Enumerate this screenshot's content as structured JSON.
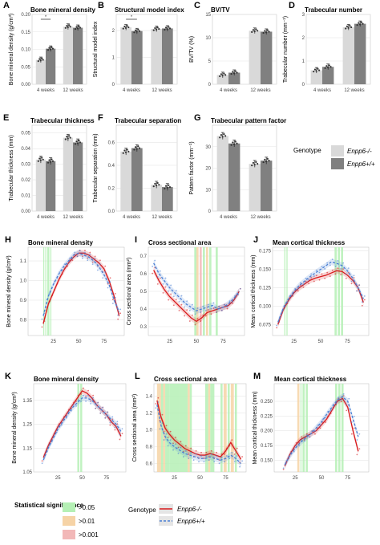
{
  "figure": {
    "genotype_title": "Genotype",
    "genotypes": [
      "Enpp6-/-",
      "Enpp6+/+"
    ],
    "genotype_colors": {
      "Enpp6-/-": "#d9d9d9",
      "Enpp6+/+": "#808080"
    },
    "line_colors": {
      "Enpp6-/-": "#d7191c",
      "Enpp6+/+": "#4a7fd4"
    },
    "stat_title": "Statistical significance",
    "stat_levels": [
      {
        "label": ">0.05",
        "color": "#b5f0b5"
      },
      {
        "label": ">0.01",
        "color": "#f6d3a6"
      },
      {
        "label": ">0.001",
        "color": "#f2b8b8"
      }
    ],
    "bottom_genotype_title": "Genotype"
  },
  "chart_data": [
    {
      "panel": "A",
      "type": "bar",
      "title": "Bone mineral density",
      "ylabel": "Bone mineral density (g/cm³)",
      "categories": [
        "4 weeks",
        "12 weeks"
      ],
      "ylim": [
        0,
        0.2
      ],
      "yticks": [
        0,
        0.05,
        0.1,
        0.15,
        0.2
      ],
      "ytick_labels": [
        "0.00",
        "0.05",
        "0.10",
        "0.15",
        "0.20"
      ],
      "series": [
        {
          "name": "Enpp6-/-",
          "values": [
            0.07,
            0.165
          ]
        },
        {
          "name": "Enpp6+/+",
          "values": [
            0.102,
            0.162
          ]
        }
      ],
      "significance": "*"
    },
    {
      "panel": "B",
      "type": "bar",
      "title": "Structural model index",
      "ylabel": "Structural model index",
      "categories": [
        "4 weeks",
        "12 weeks"
      ],
      "ylim": [
        0,
        2.6
      ],
      "yticks": [
        0,
        1,
        2
      ],
      "ytick_labels": [
        "0",
        "1",
        "2"
      ],
      "series": [
        {
          "name": "Enpp6-/-",
          "values": [
            2.12,
            2.06
          ]
        },
        {
          "name": "Enpp6+/+",
          "values": [
            1.98,
            2.08
          ]
        }
      ],
      "significance": "*"
    },
    {
      "panel": "C",
      "type": "bar",
      "title": "BV/TV",
      "ylabel": "BV/TV (%)",
      "categories": [
        "4 weeks",
        "12 weeks"
      ],
      "ylim": [
        0,
        15
      ],
      "yticks": [
        0,
        5,
        10,
        15
      ],
      "ytick_labels": [
        "0",
        "5",
        "10",
        "15"
      ],
      "series": [
        {
          "name": "Enpp6-/-",
          "values": [
            2.0,
            11.5
          ]
        },
        {
          "name": "Enpp6+/+",
          "values": [
            2.5,
            11.3
          ]
        }
      ]
    },
    {
      "panel": "D",
      "type": "bar",
      "title": "Trabecular number",
      "ylabel": "Trabecular number (mm⁻¹)",
      "categories": [
        "4 weeks",
        "12 weeks"
      ],
      "ylim": [
        0,
        3
      ],
      "yticks": [
        0,
        1,
        2,
        3
      ],
      "ytick_labels": [
        "0",
        "1",
        "2",
        "3"
      ],
      "series": [
        {
          "name": "Enpp6-/-",
          "values": [
            0.6,
            2.45
          ]
        },
        {
          "name": "Enpp6+/+",
          "values": [
            0.75,
            2.6
          ]
        }
      ]
    },
    {
      "panel": "E",
      "type": "bar",
      "title": "Trabecular thickness",
      "ylabel": "Trabecular thickness (mm)",
      "categories": [
        "4 weeks",
        "12 weeks"
      ],
      "ylim": [
        0,
        0.055
      ],
      "yticks": [
        0,
        0.01,
        0.02,
        0.03,
        0.04,
        0.05
      ],
      "ytick_labels": [
        "0.00",
        "0.01",
        "0.02",
        "0.03",
        "0.04",
        "0.05"
      ],
      "series": [
        {
          "name": "Enpp6-/-",
          "values": [
            0.033,
            0.047
          ]
        },
        {
          "name": "Enpp6+/+",
          "values": [
            0.032,
            0.044
          ]
        }
      ]
    },
    {
      "panel": "F",
      "type": "bar",
      "title": "Trabecular separation",
      "ylabel": "Trabecular separation (mm)",
      "categories": [
        "4 weeks",
        "12 weeks"
      ],
      "ylim": [
        0,
        0.75
      ],
      "yticks": [
        0,
        0.2,
        0.4,
        0.6
      ],
      "ytick_labels": [
        "0.0",
        "0.2",
        "0.4",
        "0.6"
      ],
      "series": [
        {
          "name": "Enpp6-/-",
          "values": [
            0.52,
            0.23
          ]
        },
        {
          "name": "Enpp6+/+",
          "values": [
            0.55,
            0.21
          ]
        }
      ]
    },
    {
      "panel": "G",
      "type": "bar",
      "title": "Trabecular pattern factor",
      "ylabel": "Pattern factor (mm⁻¹)",
      "categories": [
        "4 weeks",
        "12 weeks"
      ],
      "ylim": [
        0,
        40
      ],
      "yticks": [
        0,
        10,
        20,
        30
      ],
      "ytick_labels": [
        "0",
        "10",
        "20",
        "30"
      ],
      "series": [
        {
          "name": "Enpp6-/-",
          "values": [
            35,
            22
          ]
        },
        {
          "name": "Enpp6+/+",
          "values": [
            31.5,
            23.5
          ]
        }
      ]
    },
    {
      "panel": "H",
      "type": "line",
      "title": "Bone mineral density",
      "ylabel": "Bone mineral density (g/cm³)",
      "xlim": [
        0,
        95
      ],
      "xticks": [
        25,
        50,
        75
      ],
      "ylim": [
        0.72,
        1.17
      ],
      "yticks": [
        0.8,
        0.9,
        1.0,
        1.1
      ],
      "ytick_labels": [
        "0.8",
        "0.9",
        "1.0",
        "1.1"
      ],
      "x": [
        15,
        20,
        25,
        30,
        35,
        40,
        45,
        50,
        55,
        60,
        65,
        70,
        75,
        80,
        85,
        90
      ],
      "series": [
        {
          "name": "Enpp6-/-",
          "values": [
            0.78,
            0.88,
            0.94,
            1.0,
            1.05,
            1.09,
            1.12,
            1.14,
            1.14,
            1.13,
            1.11,
            1.09,
            1.06,
            1.0,
            0.92,
            0.82
          ]
        },
        {
          "name": "Enpp6+/+",
          "values": [
            0.82,
            0.92,
            0.98,
            1.03,
            1.07,
            1.1,
            1.13,
            1.14,
            1.13,
            1.12,
            1.1,
            1.07,
            1.03,
            0.98,
            0.9,
            0.84
          ]
        }
      ],
      "sig_bands": [
        [
          15,
          16,
          "g"
        ],
        [
          17,
          18,
          "g"
        ],
        [
          19,
          21,
          "g"
        ],
        [
          22,
          23,
          "g"
        ]
      ]
    },
    {
      "panel": "I",
      "type": "line",
      "title": "Cross sectional area",
      "ylabel": "Cross sectional area (mm²)",
      "xlim": [
        5,
        95
      ],
      "xticks": [
        25,
        50,
        75
      ],
      "ylim": [
        0.25,
        0.75
      ],
      "yticks": [
        0.3,
        0.4,
        0.5,
        0.6,
        0.7
      ],
      "ytick_labels": [
        "0.3",
        "0.4",
        "0.5",
        "0.6",
        "0.7"
      ],
      "x": [
        10,
        15,
        20,
        25,
        30,
        35,
        40,
        45,
        50,
        55,
        60,
        65,
        70,
        75,
        80,
        85,
        90
      ],
      "series": [
        {
          "name": "Enpp6-/-",
          "values": [
            0.62,
            0.56,
            0.51,
            0.47,
            0.44,
            0.41,
            0.38,
            0.35,
            0.33,
            0.35,
            0.38,
            0.39,
            0.4,
            0.41,
            0.42,
            0.45,
            0.5
          ]
        },
        {
          "name": "Enpp6+/+",
          "values": [
            0.66,
            0.6,
            0.56,
            0.52,
            0.49,
            0.46,
            0.43,
            0.41,
            0.39,
            0.4,
            0.41,
            0.42,
            0.4,
            0.41,
            0.43,
            0.46,
            0.5
          ]
        }
      ],
      "sig_bands": [
        [
          48,
          50,
          "g"
        ],
        [
          50,
          52,
          "o"
        ],
        [
          53,
          55,
          "r"
        ],
        [
          56,
          58,
          "g"
        ],
        [
          59,
          61,
          "o"
        ],
        [
          62,
          64,
          "g"
        ],
        [
          68,
          70,
          "g"
        ]
      ]
    },
    {
      "panel": "J",
      "type": "line",
      "title": "Mean cortical thickness",
      "ylabel": "Mean cortical thickness (mm)",
      "xlim": [
        5,
        95
      ],
      "xticks": [
        25,
        50,
        75
      ],
      "ylim": [
        0.06,
        0.18
      ],
      "yticks": [
        0.075,
        0.1,
        0.125,
        0.15,
        0.175
      ],
      "ytick_labels": [
        "0.075",
        "0.100",
        "0.125",
        "0.150",
        "0.175"
      ],
      "x": [
        10,
        15,
        20,
        25,
        30,
        35,
        40,
        45,
        50,
        55,
        60,
        65,
        70,
        75,
        80,
        85,
        90
      ],
      "series": [
        {
          "name": "Enpp6-/-",
          "values": [
            0.075,
            0.095,
            0.108,
            0.118,
            0.125,
            0.13,
            0.135,
            0.138,
            0.14,
            0.142,
            0.145,
            0.148,
            0.147,
            0.142,
            0.135,
            0.125,
            0.105
          ]
        },
        {
          "name": "Enpp6+/+",
          "values": [
            0.078,
            0.097,
            0.11,
            0.12,
            0.128,
            0.134,
            0.14,
            0.145,
            0.15,
            0.155,
            0.16,
            0.158,
            0.155,
            0.148,
            0.138,
            0.125,
            0.11
          ]
        }
      ],
      "sig_bands": [
        [
          16,
          17,
          "g"
        ],
        [
          18,
          19,
          "g"
        ],
        [
          63,
          65,
          "g"
        ],
        [
          66,
          68,
          "g"
        ],
        [
          69,
          71,
          "g"
        ]
      ]
    },
    {
      "panel": "K",
      "type": "line",
      "title": "Bone mineral density",
      "ylabel": "Bone mineral density (g/cm³)",
      "xlim": [
        0,
        95
      ],
      "xticks": [
        25,
        50,
        75
      ],
      "ylim": [
        1.05,
        1.42
      ],
      "yticks": [
        1.05,
        1.15,
        1.25,
        1.35
      ],
      "ytick_labels": [
        "1.05",
        "1.15",
        "1.25",
        "1.35"
      ],
      "x": [
        10,
        15,
        20,
        25,
        30,
        35,
        40,
        45,
        50,
        55,
        60,
        65,
        70,
        75,
        80,
        85,
        90
      ],
      "series": [
        {
          "name": "Enpp6-/-",
          "values": [
            1.11,
            1.16,
            1.2,
            1.24,
            1.27,
            1.3,
            1.33,
            1.36,
            1.39,
            1.38,
            1.36,
            1.33,
            1.31,
            1.29,
            1.26,
            1.24,
            1.2
          ]
        },
        {
          "name": "Enpp6+/+",
          "values": [
            1.1,
            1.15,
            1.19,
            1.23,
            1.26,
            1.29,
            1.32,
            1.34,
            1.36,
            1.36,
            1.35,
            1.33,
            1.31,
            1.29,
            1.27,
            1.25,
            1.22
          ]
        }
      ],
      "sig_bands": [
        [
          45,
          47,
          "g"
        ],
        [
          48,
          50,
          "g"
        ]
      ]
    },
    {
      "panel": "L",
      "type": "line",
      "title": "Cross sectional area",
      "ylabel": "Cross sectional area (mm²)",
      "xlim": [
        5,
        95
      ],
      "xticks": [
        25,
        50,
        75
      ],
      "ylim": [
        0.5,
        1.55
      ],
      "yticks": [
        0.6,
        0.8,
        1.0,
        1.2,
        1.4
      ],
      "ytick_labels": [
        "0.6",
        "0.8",
        "1.0",
        "1.2",
        "1.4"
      ],
      "x": [
        8,
        12,
        16,
        20,
        25,
        30,
        35,
        40,
        45,
        50,
        55,
        60,
        65,
        70,
        75,
        80,
        85,
        90
      ],
      "series": [
        {
          "name": "Enpp6-/-",
          "values": [
            1.35,
            1.15,
            1.02,
            0.95,
            0.88,
            0.83,
            0.78,
            0.75,
            0.72,
            0.7,
            0.7,
            0.72,
            0.7,
            0.68,
            0.75,
            0.85,
            0.75,
            0.65
          ]
        },
        {
          "name": "Enpp6+/+",
          "values": [
            1.3,
            1.05,
            0.92,
            0.85,
            0.8,
            0.76,
            0.72,
            0.7,
            0.68,
            0.66,
            0.66,
            0.68,
            0.66,
            0.64,
            0.66,
            0.7,
            0.66,
            0.6
          ]
        }
      ],
      "sig_bands": [
        [
          8,
          12,
          "o"
        ],
        [
          12,
          14,
          "g"
        ],
        [
          14,
          16,
          "o"
        ],
        [
          16,
          20,
          "g"
        ],
        [
          20,
          30,
          "g"
        ],
        [
          30,
          38,
          "g"
        ],
        [
          38,
          40,
          "o"
        ],
        [
          40,
          42,
          "g"
        ],
        [
          55,
          58,
          "g"
        ],
        [
          58,
          60,
          "o"
        ],
        [
          60,
          64,
          "g"
        ],
        [
          70,
          72,
          "g"
        ],
        [
          73,
          76,
          "o"
        ],
        [
          77,
          79,
          "g"
        ],
        [
          80,
          83,
          "o"
        ],
        [
          84,
          86,
          "g"
        ]
      ]
    },
    {
      "panel": "M",
      "type": "line",
      "title": "Mean cortical thickness",
      "ylabel": "Mean cortical thickness (mm)",
      "xlim": [
        5,
        95
      ],
      "xticks": [
        25,
        50,
        75
      ],
      "ylim": [
        0.13,
        0.28
      ],
      "yticks": [
        0.15,
        0.175,
        0.2,
        0.225,
        0.25
      ],
      "ytick_labels": [
        "0.150",
        "0.175",
        "0.200",
        "0.225",
        "0.250"
      ],
      "x": [
        15,
        20,
        25,
        30,
        35,
        40,
        45,
        50,
        55,
        60,
        65,
        70,
        75,
        80,
        85
      ],
      "series": [
        {
          "name": "Enpp6-/-",
          "values": [
            0.14,
            0.16,
            0.175,
            0.185,
            0.19,
            0.195,
            0.2,
            0.21,
            0.22,
            0.235,
            0.25,
            0.255,
            0.24,
            0.2,
            0.165
          ]
        },
        {
          "name": "Enpp6+/+",
          "values": [
            0.142,
            0.158,
            0.17,
            0.18,
            0.188,
            0.195,
            0.205,
            0.215,
            0.228,
            0.24,
            0.252,
            0.258,
            0.25,
            0.22,
            0.19
          ]
        }
      ],
      "sig_bands": [
        [
          27,
          29,
          "o"
        ],
        [
          30,
          31,
          "g"
        ],
        [
          32,
          34,
          "g"
        ],
        [
          35,
          37,
          "g"
        ],
        [
          63,
          65,
          "g"
        ],
        [
          66,
          68,
          "g"
        ],
        [
          69,
          71,
          "g"
        ]
      ]
    }
  ]
}
